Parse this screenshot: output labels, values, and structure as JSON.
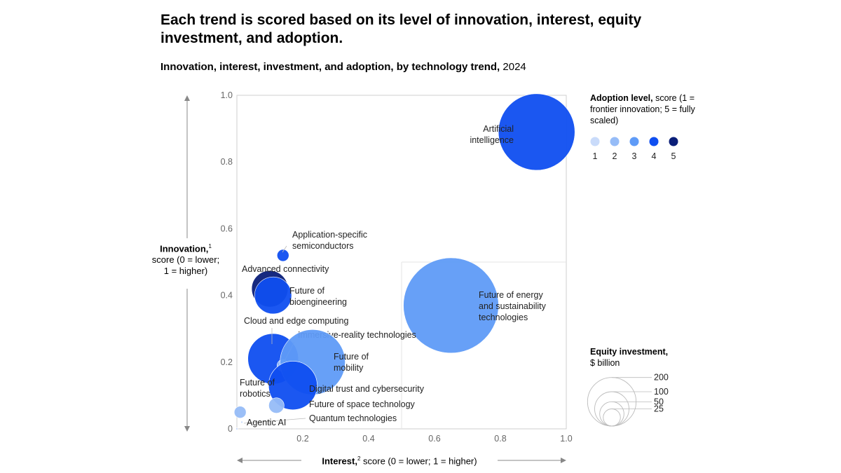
{
  "title": "Each trend is scored based on its level of innovation, interest, equity investment, and adoption.",
  "subtitle": {
    "bold": "Innovation, interest, investment, and adoption, by technology trend,",
    "year": "2024"
  },
  "y_axis": {
    "bold": "Innovation,",
    "sup": "1",
    "rest": "score (0 = lower; 1 = higher)"
  },
  "x_axis": {
    "bold": "Interest,",
    "sup": "2",
    "rest": " score (0 = lower; 1 = higher)"
  },
  "adoption_legend": {
    "bold": "Adoption level,",
    "rest": " score (1 = frontier innovation; 5 = fully scaled)",
    "levels": [
      "1",
      "2",
      "3",
      "4",
      "5"
    ]
  },
  "equity_legend": {
    "bold": "Equity investment,",
    "rest": "$ billion",
    "sizes": [
      "200",
      "100",
      "50",
      "25"
    ]
  },
  "colors": {
    "level1": "#c9dbfa",
    "level2": "#96bcf7",
    "level3": "#5f9bf7",
    "level4": "#0f4ef0",
    "level5": "#0a1e78",
    "axis": "#cfcfcf",
    "text_gray": "#666666"
  },
  "chart_data": {
    "type": "scatter",
    "title": "Innovation, interest, investment, and adoption, by technology trend, 2024",
    "xlabel": "Interest, score (0 = lower; 1 = higher)",
    "ylabel": "Innovation, score (0 = lower; 1 = higher)",
    "xlim": [
      0,
      1.0
    ],
    "ylim": [
      0,
      1.0
    ],
    "x_ticks": [
      "0",
      "0.2",
      "0.4",
      "0.6",
      "0.8",
      "1.0"
    ],
    "y_ticks": [
      "0",
      "0.2",
      "0.4",
      "0.6",
      "0.8",
      "1.0"
    ],
    "points": [
      {
        "name": "Artificial intelligence",
        "lines": [
          "Artificial",
          "intelligence"
        ],
        "x": 0.91,
        "y": 0.89,
        "investment": 124,
        "adoption": 4
      },
      {
        "name": "Application-specific semiconductors",
        "lines": [
          "Application-specific",
          "semiconductors"
        ],
        "x": 0.14,
        "y": 0.52,
        "investment": 3,
        "adoption": 4
      },
      {
        "name": "Advanced connectivity",
        "lines": [
          "Advanced connectivity"
        ],
        "x": 0.1,
        "y": 0.42,
        "investment": 28,
        "adoption": 5
      },
      {
        "name": "Future of bioengineering",
        "lines": [
          "Future of",
          "bioengineering"
        ],
        "x": 0.11,
        "y": 0.4,
        "investment": 29,
        "adoption": 4
      },
      {
        "name": "Future of energy and sustainability technologies",
        "lines": [
          "Future of energy",
          "and sustainability",
          "technologies"
        ],
        "x": 0.65,
        "y": 0.37,
        "investment": 192,
        "adoption": 3
      },
      {
        "name": "Cloud and edge computing",
        "lines": [
          "Cloud and edge computing"
        ],
        "x": 0.11,
        "y": 0.21,
        "investment": 54,
        "adoption": 4
      },
      {
        "name": "Immersive-reality technologies",
        "lines": [
          "Immersive-reality technologies"
        ],
        "x": 0.14,
        "y": 0.19,
        "investment": 3,
        "adoption": 2
      },
      {
        "name": "Future of mobility",
        "lines": [
          "Future of",
          "mobility"
        ],
        "x": 0.23,
        "y": 0.2,
        "investment": 90,
        "adoption": 3
      },
      {
        "name": "Digital trust and cybersecurity",
        "lines": [
          "Digital trust and cybersecurity"
        ],
        "x": 0.17,
        "y": 0.13,
        "investment": 50,
        "adoption": 4
      },
      {
        "name": "Future of robotics",
        "lines": [
          "Future of",
          "robotics"
        ],
        "x": 0.01,
        "y": 0.05,
        "investment": 3,
        "adoption": 2
      },
      {
        "name": "Future of space technology",
        "lines": [
          "Future of space technology"
        ],
        "x": 0.12,
        "y": 0.07,
        "investment": 5,
        "adoption": 2
      },
      {
        "name": "Quantum technologies",
        "lines": [
          "Quantum technologies"
        ],
        "x": 0.015,
        "y": 0.02,
        "investment": 0,
        "adoption": 1
      },
      {
        "name": "Agentic AI",
        "lines": [
          "Agentic AI"
        ],
        "x": 0.0,
        "y": 0.0,
        "investment": 0,
        "adoption": 1
      }
    ]
  }
}
